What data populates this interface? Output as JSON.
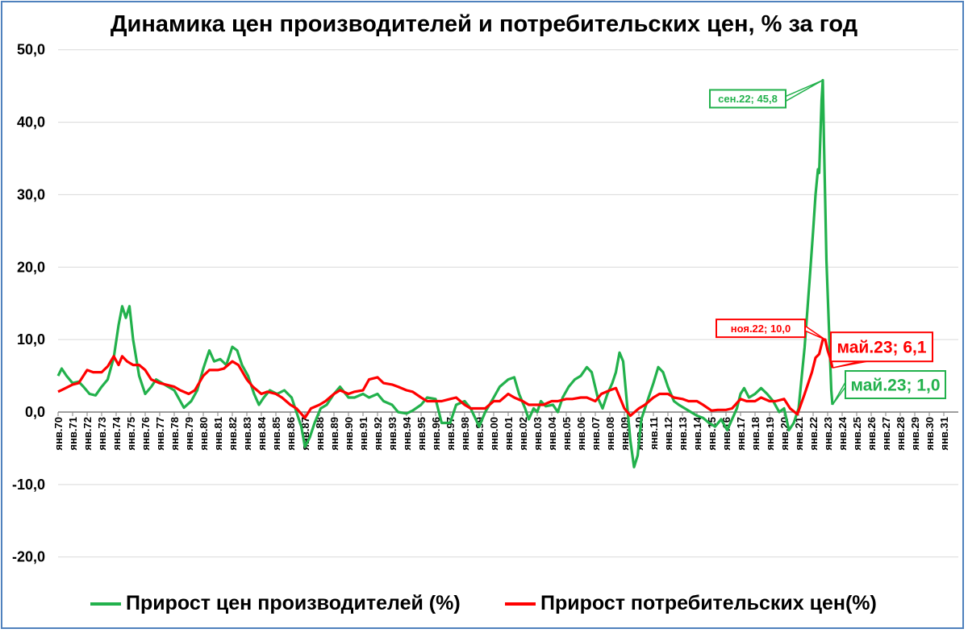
{
  "title": "Динамика цен производителей и потребительских цен, % за год",
  "colors": {
    "ppi": "#22b14c",
    "cpi": "#ff0000",
    "grid": "#d9d9d9",
    "frame": "#4f81bd"
  },
  "chart_data": {
    "type": "line",
    "title": "Динамика цен производителей и потребительских цен, % за год",
    "xlabel": "",
    "ylabel": "",
    "ylim": [
      -20,
      50
    ],
    "yticks": [
      -20,
      -10,
      0,
      10,
      20,
      30,
      40,
      50
    ],
    "ytick_labels": [
      "-20,0",
      "-10,0",
      "0,0",
      "10,0",
      "20,0",
      "30,0",
      "40,0",
      "50,0"
    ],
    "grid": "horizontal",
    "legend_position": "bottom",
    "x_range": [
      "1970-01",
      "2031-12"
    ],
    "x_tick_labels": [
      "янв.70",
      "янв.71",
      "янв.72",
      "янв.73",
      "янв.74",
      "янв.75",
      "янв.76",
      "янв.77",
      "янв.78",
      "янв.79",
      "янв.80",
      "янв.81",
      "янв.82",
      "янв.83",
      "янв.84",
      "янв.85",
      "янв.86",
      "янв.87",
      "янв.88",
      "янв.89",
      "янв.90",
      "янв.91",
      "янв.92",
      "янв.93",
      "янв.94",
      "янв.95",
      "янв.96",
      "янв.97",
      "янв.98",
      "янв.99",
      "янв.00",
      "янв.01",
      "янв.02",
      "янв.03",
      "янв.04",
      "янв.05",
      "янв.06",
      "янв.07",
      "янв.08",
      "янв.09",
      "янв.10",
      "янв.11",
      "янв.12",
      "янв.13",
      "янв.14",
      "янв.15",
      "янв.16",
      "янв.17",
      "янв.18",
      "янв.19",
      "янв.20",
      "янв.21",
      "янв.22",
      "янв.23",
      "янв.24",
      "янв.25",
      "янв.26",
      "янв.27",
      "янв.28",
      "янв.29",
      "янв.30",
      "янв.31"
    ],
    "series": [
      {
        "name": "Прирост цен производителей (%)",
        "color": "#22b14c",
        "points": [
          [
            "1970-01",
            5.0
          ],
          [
            "1970-04",
            6.0
          ],
          [
            "1970-08",
            5.0
          ],
          [
            "1971-01",
            4.0
          ],
          [
            "1971-06",
            4.2
          ],
          [
            "1971-10",
            3.5
          ],
          [
            "1972-03",
            2.5
          ],
          [
            "1972-08",
            2.3
          ],
          [
            "1973-01",
            3.5
          ],
          [
            "1973-06",
            4.5
          ],
          [
            "1973-11",
            7.5
          ],
          [
            "1974-03",
            12.0
          ],
          [
            "1974-06",
            14.6
          ],
          [
            "1974-09",
            13.0
          ],
          [
            "1974-12",
            14.6
          ],
          [
            "1975-03",
            10.0
          ],
          [
            "1975-08",
            5.0
          ],
          [
            "1976-01",
            2.5
          ],
          [
            "1976-06",
            3.5
          ],
          [
            "1976-10",
            4.5
          ],
          [
            "1977-03",
            4.0
          ],
          [
            "1977-08",
            3.5
          ],
          [
            "1978-01",
            3.0
          ],
          [
            "1978-06",
            1.5
          ],
          [
            "1978-09",
            0.6
          ],
          [
            "1979-03",
            1.5
          ],
          [
            "1979-08",
            3.0
          ],
          [
            "1980-01",
            6.0
          ],
          [
            "1980-06",
            8.5
          ],
          [
            "1980-10",
            7.0
          ],
          [
            "1981-03",
            7.3
          ],
          [
            "1981-08",
            6.5
          ],
          [
            "1982-01",
            9.0
          ],
          [
            "1982-05",
            8.5
          ],
          [
            "1982-09",
            6.5
          ],
          [
            "1983-02",
            5.0
          ],
          [
            "1983-07",
            2.5
          ],
          [
            "1983-11",
            1.0
          ],
          [
            "1984-03",
            2.0
          ],
          [
            "1984-08",
            3.0
          ],
          [
            "1985-02",
            2.5
          ],
          [
            "1985-08",
            3.0
          ],
          [
            "1986-02",
            2.0
          ],
          [
            "1986-06",
            0.0
          ],
          [
            "1986-10",
            -2.0
          ],
          [
            "1987-01",
            -4.8
          ],
          [
            "1987-05",
            -3.5
          ],
          [
            "1987-09",
            -1.5
          ],
          [
            "1988-02",
            0.5
          ],
          [
            "1988-07",
            1.0
          ],
          [
            "1989-01",
            2.5
          ],
          [
            "1989-06",
            3.5
          ],
          [
            "1990-01",
            2.0
          ],
          [
            "1990-06",
            2.0
          ],
          [
            "1991-01",
            2.5
          ],
          [
            "1991-06",
            2.0
          ],
          [
            "1992-01",
            2.5
          ],
          [
            "1992-06",
            1.5
          ],
          [
            "1993-01",
            1.0
          ],
          [
            "1993-06",
            0.0
          ],
          [
            "1994-01",
            -0.2
          ],
          [
            "1994-06",
            0.2
          ],
          [
            "1995-01",
            1.0
          ],
          [
            "1995-06",
            2.0
          ],
          [
            "1996-01",
            1.8
          ],
          [
            "1996-06",
            -1.5
          ],
          [
            "1997-01",
            -1.5
          ],
          [
            "1997-06",
            1.0
          ],
          [
            "1998-01",
            1.5
          ],
          [
            "1998-06",
            0.5
          ],
          [
            "1999-01",
            -2.0
          ],
          [
            "1999-06",
            0.0
          ],
          [
            "2000-01",
            2.0
          ],
          [
            "2000-06",
            3.5
          ],
          [
            "2001-01",
            4.5
          ],
          [
            "2001-06",
            4.8
          ],
          [
            "2001-10",
            2.5
          ],
          [
            "2002-03",
            0.5
          ],
          [
            "2002-06",
            -1.0
          ],
          [
            "2002-10",
            0.5
          ],
          [
            "2003-01",
            0.0
          ],
          [
            "2003-04",
            1.5
          ],
          [
            "2003-08",
            0.8
          ],
          [
            "2004-02",
            1.0
          ],
          [
            "2004-06",
            0.0
          ],
          [
            "2004-10",
            2.0
          ],
          [
            "2005-03",
            3.5
          ],
          [
            "2005-08",
            4.5
          ],
          [
            "2006-01",
            5.0
          ],
          [
            "2006-06",
            6.2
          ],
          [
            "2006-10",
            5.5
          ],
          [
            "2007-03",
            2.0
          ],
          [
            "2007-07",
            0.5
          ],
          [
            "2007-11",
            2.5
          ],
          [
            "2008-03",
            4.0
          ],
          [
            "2008-06",
            5.5
          ],
          [
            "2008-09",
            8.2
          ],
          [
            "2008-12",
            7.0
          ],
          [
            "2009-03",
            1.5
          ],
          [
            "2009-06",
            -4.0
          ],
          [
            "2009-09",
            -7.6
          ],
          [
            "2009-12",
            -6.0
          ],
          [
            "2010-03",
            -1.0
          ],
          [
            "2010-08",
            1.5
          ],
          [
            "2011-01",
            4.0
          ],
          [
            "2011-05",
            6.2
          ],
          [
            "2011-09",
            5.5
          ],
          [
            "2012-01",
            3.5
          ],
          [
            "2012-06",
            1.5
          ],
          [
            "2012-10",
            1.0
          ],
          [
            "2013-03",
            0.5
          ],
          [
            "2013-08",
            0.0
          ],
          [
            "2014-01",
            -0.5
          ],
          [
            "2014-06",
            -0.8
          ],
          [
            "2014-11",
            -1.5
          ],
          [
            "2015-04",
            -2.0
          ],
          [
            "2015-09",
            -1.0
          ],
          [
            "2016-02",
            -2.5
          ],
          [
            "2016-06",
            -1.0
          ],
          [
            "2016-10",
            0.5
          ],
          [
            "2017-01",
            2.5
          ],
          [
            "2017-04",
            3.3
          ],
          [
            "2017-08",
            2.0
          ],
          [
            "2018-01",
            2.5
          ],
          [
            "2018-06",
            3.3
          ],
          [
            "2018-11",
            2.5
          ],
          [
            "2019-04",
            1.5
          ],
          [
            "2019-09",
            0.0
          ],
          [
            "2020-01",
            0.5
          ],
          [
            "2020-05",
            -2.5
          ],
          [
            "2020-09",
            -1.5
          ],
          [
            "2021-01",
            0.5
          ],
          [
            "2021-06",
            9.0
          ],
          [
            "2021-10",
            18.0
          ],
          [
            "2022-01",
            25.0
          ],
          [
            "2022-03",
            30.0
          ],
          [
            "2022-05",
            33.5
          ],
          [
            "2022-06",
            33.0
          ],
          [
            "2022-07",
            38.0
          ],
          [
            "2022-08",
            43.0
          ],
          [
            "2022-09",
            45.8
          ],
          [
            "2022-10",
            37.0
          ],
          [
            "2022-12",
            21.0
          ],
          [
            "2023-02",
            12.0
          ],
          [
            "2023-04",
            3.0
          ],
          [
            "2023-05",
            1.0
          ]
        ]
      },
      {
        "name": "Прирост потребительских цен(%)",
        "color": "#ff0000",
        "points": [
          [
            "1970-01",
            2.8
          ],
          [
            "1970-06",
            3.2
          ],
          [
            "1971-01",
            3.8
          ],
          [
            "1971-06",
            4.0
          ],
          [
            "1972-01",
            5.8
          ],
          [
            "1972-06",
            5.5
          ],
          [
            "1973-01",
            5.5
          ],
          [
            "1973-06",
            6.3
          ],
          [
            "1973-11",
            7.7
          ],
          [
            "1974-03",
            6.5
          ],
          [
            "1974-06",
            7.7
          ],
          [
            "1974-10",
            7.0
          ],
          [
            "1975-03",
            6.5
          ],
          [
            "1975-08",
            6.5
          ],
          [
            "1976-01",
            5.8
          ],
          [
            "1976-06",
            4.5
          ],
          [
            "1977-01",
            4.0
          ],
          [
            "1977-06",
            3.8
          ],
          [
            "1978-01",
            3.5
          ],
          [
            "1978-06",
            3.0
          ],
          [
            "1979-01",
            2.5
          ],
          [
            "1979-06",
            3.0
          ],
          [
            "1980-01",
            5.0
          ],
          [
            "1980-06",
            5.8
          ],
          [
            "1981-01",
            5.8
          ],
          [
            "1981-06",
            6.0
          ],
          [
            "1982-01",
            7.0
          ],
          [
            "1982-06",
            6.5
          ],
          [
            "1983-01",
            4.5
          ],
          [
            "1983-06",
            3.5
          ],
          [
            "1984-01",
            2.5
          ],
          [
            "1984-06",
            2.8
          ],
          [
            "1985-01",
            2.5
          ],
          [
            "1985-06",
            2.0
          ],
          [
            "1986-01",
            1.0
          ],
          [
            "1986-06",
            0.5
          ],
          [
            "1987-01",
            -0.8
          ],
          [
            "1987-06",
            0.5
          ],
          [
            "1988-01",
            1.0
          ],
          [
            "1988-06",
            1.5
          ],
          [
            "1989-01",
            2.5
          ],
          [
            "1989-06",
            3.0
          ],
          [
            "1990-01",
            2.5
          ],
          [
            "1990-06",
            2.8
          ],
          [
            "1991-01",
            3.0
          ],
          [
            "1991-06",
            4.5
          ],
          [
            "1992-01",
            4.8
          ],
          [
            "1992-06",
            4.0
          ],
          [
            "1993-01",
            3.8
          ],
          [
            "1993-06",
            3.5
          ],
          [
            "1994-01",
            3.0
          ],
          [
            "1994-06",
            2.8
          ],
          [
            "1995-01",
            2.0
          ],
          [
            "1995-06",
            1.5
          ],
          [
            "1996-01",
            1.5
          ],
          [
            "1996-06",
            1.5
          ],
          [
            "1997-01",
            1.8
          ],
          [
            "1997-06",
            2.0
          ],
          [
            "1998-01",
            1.0
          ],
          [
            "1998-06",
            0.5
          ],
          [
            "1999-01",
            0.5
          ],
          [
            "1999-06",
            0.5
          ],
          [
            "2000-01",
            1.5
          ],
          [
            "2000-06",
            1.5
          ],
          [
            "2001-01",
            2.5
          ],
          [
            "2001-06",
            2.0
          ],
          [
            "2002-01",
            1.5
          ],
          [
            "2002-06",
            1.0
          ],
          [
            "2003-01",
            1.0
          ],
          [
            "2003-06",
            1.0
          ],
          [
            "2004-01",
            1.5
          ],
          [
            "2004-06",
            1.5
          ],
          [
            "2005-01",
            1.8
          ],
          [
            "2005-06",
            1.8
          ],
          [
            "2006-01",
            2.0
          ],
          [
            "2006-06",
            2.0
          ],
          [
            "2007-01",
            1.5
          ],
          [
            "2007-06",
            2.5
          ],
          [
            "2008-01",
            3.0
          ],
          [
            "2008-06",
            3.3
          ],
          [
            "2009-01",
            0.5
          ],
          [
            "2009-06",
            -0.5
          ],
          [
            "2010-01",
            0.5
          ],
          [
            "2010-06",
            1.0
          ],
          [
            "2011-01",
            2.0
          ],
          [
            "2011-06",
            2.5
          ],
          [
            "2012-01",
            2.5
          ],
          [
            "2012-06",
            2.0
          ],
          [
            "2013-01",
            1.8
          ],
          [
            "2013-06",
            1.5
          ],
          [
            "2014-01",
            1.5
          ],
          [
            "2014-06",
            1.0
          ],
          [
            "2015-01",
            0.2
          ],
          [
            "2015-06",
            0.3
          ],
          [
            "2016-01",
            0.3
          ],
          [
            "2016-06",
            0.5
          ],
          [
            "2017-01",
            1.8
          ],
          [
            "2017-06",
            1.5
          ],
          [
            "2018-01",
            1.5
          ],
          [
            "2018-06",
            2.0
          ],
          [
            "2019-01",
            1.5
          ],
          [
            "2019-06",
            1.5
          ],
          [
            "2020-01",
            1.8
          ],
          [
            "2020-06",
            0.5
          ],
          [
            "2020-12",
            -0.3
          ],
          [
            "2021-06",
            2.5
          ],
          [
            "2021-12",
            5.5
          ],
          [
            "2022-03",
            7.5
          ],
          [
            "2022-06",
            8.0
          ],
          [
            "2022-09",
            10.0
          ],
          [
            "2022-11",
            10.0
          ],
          [
            "2023-01",
            8.5
          ],
          [
            "2023-03",
            7.5
          ],
          [
            "2023-05",
            6.1
          ]
        ]
      }
    ],
    "annotations": [
      {
        "text": "сен.22; 45,8",
        "x": "2022-09",
        "y": 45.8,
        "series": "Прирост цен производителей (%)"
      },
      {
        "text": "ноя.22; 10,0",
        "x": "2022-11",
        "y": 10.0,
        "series": "Прирост потребительских цен(%)"
      },
      {
        "text": "май.23; 6,1",
        "x": "2023-05",
        "y": 6.1,
        "series": "Прирост потребительских цен(%)"
      },
      {
        "text": "май.23; 1,0",
        "x": "2023-05",
        "y": 1.0,
        "series": "Прирост цен производителей (%)"
      }
    ]
  },
  "legend": {
    "items": [
      {
        "label": "Прирост цен производителей (%)",
        "color": "#22b14c"
      },
      {
        "label": "Прирост потребительских цен(%)",
        "color": "#ff0000"
      }
    ]
  }
}
